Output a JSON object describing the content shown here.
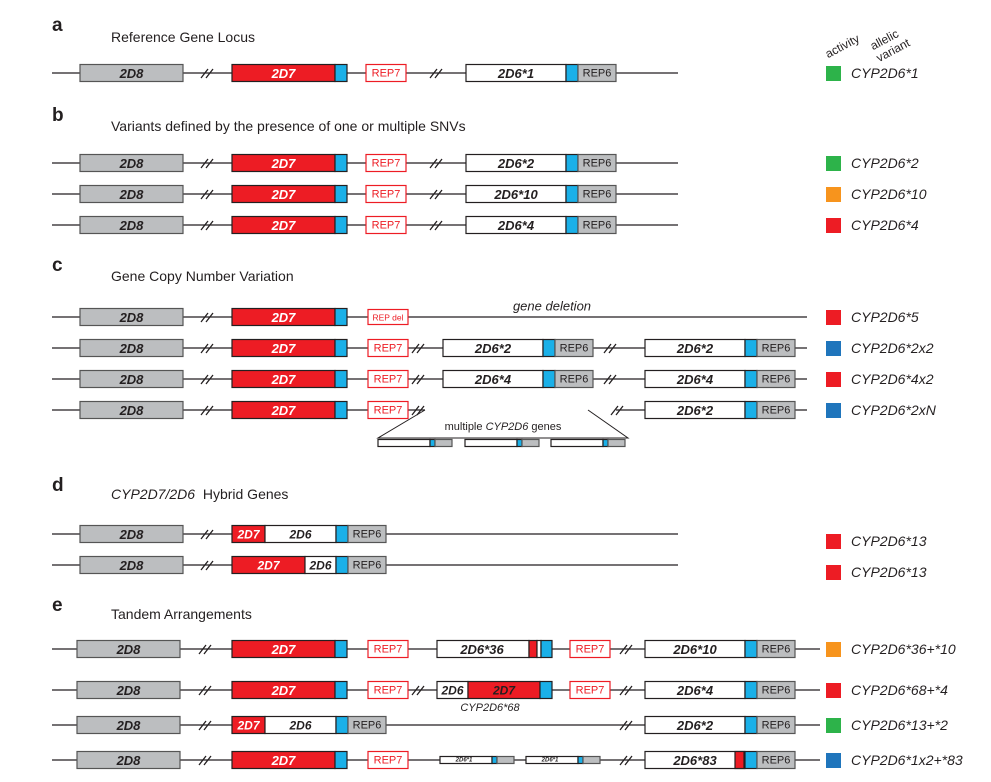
{
  "header": {
    "activity": "activity",
    "allelic": "allelic",
    "variant": "variant"
  },
  "colors": {
    "normal": "#2db34a",
    "decreased": "#f7941d",
    "none": "#ed1c24",
    "increased": "#1f75bc",
    "gene_grey": "#bcbec0",
    "gene_red": "#ed1c24",
    "exon_blue": "#1ab0e8"
  },
  "sections": [
    {
      "letter": "a",
      "title": "Reference Gene Locus",
      "rows": [
        {
          "variant": "CYP2D6*1",
          "activity_color": "#2db34a"
        }
      ]
    },
    {
      "letter": "b",
      "title": "Variants defined by the presence of one or multiple SNVs",
      "rows": [
        {
          "variant": "CYP2D6*2",
          "activity_color": "#2db34a"
        },
        {
          "variant": "CYP2D6*10",
          "activity_color": "#f7941d"
        },
        {
          "variant": "CYP2D6*4",
          "activity_color": "#ed1c24"
        }
      ]
    },
    {
      "letter": "c",
      "title": "Gene Copy Number Variation",
      "rows": [
        {
          "variant": "CYP2D6*5",
          "activity_color": "#ed1c24"
        },
        {
          "variant": "CYP2D6*2x2",
          "activity_color": "#1f75bc"
        },
        {
          "variant": "CYP2D6*4x2",
          "activity_color": "#ed1c24"
        },
        {
          "variant": "CYP2D6*2xN",
          "activity_color": "#1f75bc"
        }
      ]
    },
    {
      "letter": "d",
      "title_italic": "CYP2D7/2D6",
      "title_rest": "Hybrid Genes",
      "rows": [
        {
          "variant": "CYP2D6*13",
          "activity_color": "#ed1c24"
        },
        {
          "variant": "CYP2D6*13",
          "activity_color": "#ed1c24"
        }
      ]
    },
    {
      "letter": "e",
      "title": "Tandem Arrangements",
      "rows": [
        {
          "variant": "CYP2D6*36+*10",
          "activity_color": "#f7941d"
        },
        {
          "variant": "CYP2D6*68+*4",
          "activity_color": "#ed1c24"
        },
        {
          "variant": "CYP2D6*13+*2",
          "activity_color": "#2db34a"
        },
        {
          "variant": "CYP2D6*1x2+*83",
          "activity_color": "#1f75bc"
        }
      ]
    }
  ],
  "labels": {
    "gene_2d8": "2D8",
    "gene_2d7": "2D7",
    "gene_2d6": "2D6",
    "rep7": "REP7",
    "rep6": "REP6",
    "rep_del": "REP del",
    "gene_deletion": "gene deletion",
    "multiple_genes_pre": "multiple",
    "multiple_genes_italic": "CYP2D6",
    "multiple_genes_post": "genes",
    "cyp2d6_68": "CYP2D6*68",
    "allele_1": "2D6*1",
    "allele_2": "2D6*2",
    "allele_10": "2D6*10",
    "allele_4": "2D6*4",
    "allele_36": "2D6*36",
    "allele_83": "2D6*83",
    "small_allele_1": "2D6*1"
  }
}
